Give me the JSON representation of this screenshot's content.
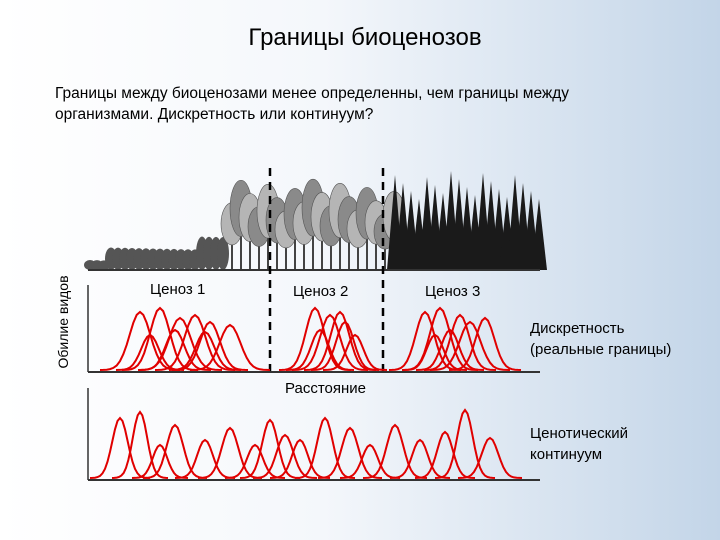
{
  "header": {
    "title": "Границы биоценозов",
    "subtitle_lines": [
      "Границы между биоценозами менее определенны, чем границы между",
      "организмами. Дискретность или континуум?"
    ]
  },
  "diagram": {
    "y_axis_label": "Обилие видов",
    "cenoses": [
      "Ценоз 1",
      "Ценоз 2",
      "Ценоз 3"
    ],
    "discrete_label_lines": [
      "Дискретность",
      "(реальные границы)"
    ],
    "x_axis_label": "Расстояние",
    "continuum_label_lines": [
      "Ценотический",
      "континуум"
    ]
  }
}
